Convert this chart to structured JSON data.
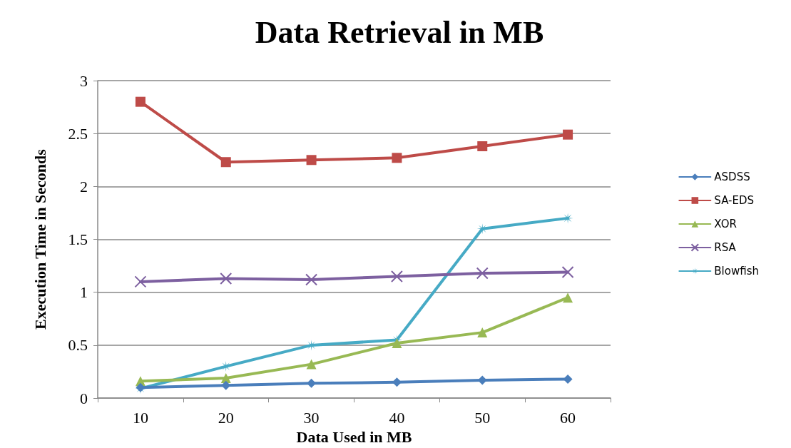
{
  "chart_data": {
    "type": "line",
    "title": "Data Retrieval in MB",
    "xlabel": "Data Used in MB",
    "ylabel": "Execution Time in Seconds",
    "categories": [
      "10",
      "20",
      "30",
      "40",
      "50",
      "60"
    ],
    "series": [
      {
        "name": "ASDSS",
        "color": "#4a7ebb",
        "marker": "diamond",
        "values": [
          0.1,
          0.12,
          0.14,
          0.15,
          0.17,
          0.18
        ]
      },
      {
        "name": "SA-EDS",
        "color": "#be4b48",
        "marker": "square",
        "values": [
          2.8,
          2.23,
          2.25,
          2.27,
          2.38,
          2.49
        ]
      },
      {
        "name": "XOR",
        "color": "#98b954",
        "marker": "triangle",
        "values": [
          0.16,
          0.19,
          0.32,
          0.52,
          0.62,
          0.95
        ]
      },
      {
        "name": "RSA",
        "color": "#7d60a0",
        "marker": "cross",
        "values": [
          1.1,
          1.13,
          1.12,
          1.15,
          1.18,
          1.19
        ]
      },
      {
        "name": "Blowfish",
        "color": "#46aac5",
        "marker": "star",
        "values": [
          0.09,
          0.3,
          0.5,
          0.55,
          1.6,
          1.7
        ]
      }
    ],
    "ylim": [
      0,
      3
    ],
    "yticks": [
      0,
      0.5,
      1,
      1.5,
      2,
      2.5,
      3
    ],
    "grid": "y",
    "legend": "right"
  }
}
